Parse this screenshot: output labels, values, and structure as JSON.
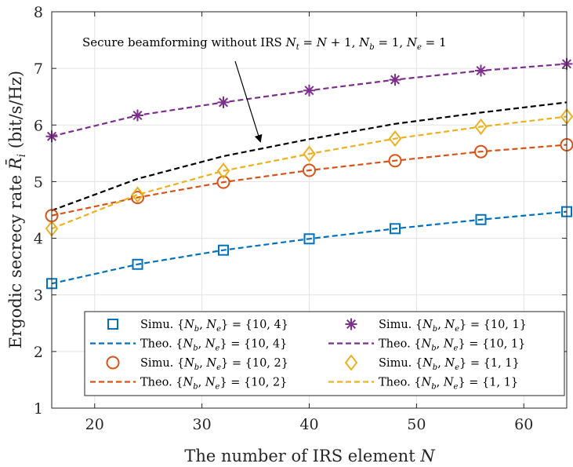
{
  "chart_data": {
    "type": "line",
    "title": "",
    "xlabel": "The number of IRS element N",
    "ylabel": "Ergodic secrecy rate R̄ᵢ (bit/s/Hz)",
    "xlim": [
      16,
      64
    ],
    "ylim": [
      1,
      8
    ],
    "xticks": [
      20,
      30,
      40,
      50,
      60
    ],
    "yticks": [
      1,
      2,
      3,
      4,
      5,
      6,
      7,
      8
    ],
    "grid": true,
    "legend_position": "bottom",
    "annotation": {
      "text": "Secure beamforming without IRS N_t = N + 1, N_b = 1, N_e = 1",
      "arrow_tip": [
        35,
        5.58
      ]
    },
    "series": [
      {
        "name": "Simu. {N_b, N_e} = {10, 4}",
        "kind": "markers",
        "marker": "square",
        "color": "#0072BD",
        "x": [
          16,
          24,
          32,
          40,
          48,
          56,
          64
        ],
        "y": [
          3.2,
          3.54,
          3.79,
          3.99,
          4.17,
          4.33,
          4.47
        ]
      },
      {
        "name": "Theo. {N_b, N_e} = {10, 4}",
        "kind": "line",
        "color": "#0072BD",
        "x": [
          16,
          24,
          32,
          40,
          48,
          56,
          64
        ],
        "y": [
          3.2,
          3.54,
          3.79,
          3.99,
          4.17,
          4.33,
          4.47
        ]
      },
      {
        "name": "Simu. {N_b, N_e} = {10, 2}",
        "kind": "markers",
        "marker": "circle",
        "color": "#D95319",
        "x": [
          16,
          24,
          32,
          40,
          48,
          56,
          64
        ],
        "y": [
          4.4,
          4.72,
          4.99,
          5.2,
          5.37,
          5.53,
          5.65
        ]
      },
      {
        "name": "Theo. {N_b, N_e} = {10, 2}",
        "kind": "line",
        "color": "#D95319",
        "x": [
          16,
          24,
          32,
          40,
          48,
          56,
          64
        ],
        "y": [
          4.4,
          4.72,
          4.99,
          5.2,
          5.37,
          5.53,
          5.65
        ]
      },
      {
        "name": "Simu. {N_b, N_e} = {10, 1}",
        "kind": "markers",
        "marker": "asterisk",
        "color": "#7E2F8E",
        "x": [
          16,
          24,
          32,
          40,
          48,
          56,
          64
        ],
        "y": [
          5.8,
          6.17,
          6.4,
          6.61,
          6.8,
          6.96,
          7.08
        ]
      },
      {
        "name": "Theo. {N_b, N_e} = {10, 1}",
        "kind": "line",
        "color": "#7E2F8E",
        "x": [
          16,
          24,
          32,
          40,
          48,
          56,
          64
        ],
        "y": [
          5.8,
          6.17,
          6.4,
          6.61,
          6.8,
          6.96,
          7.08
        ]
      },
      {
        "name": "Simu. {N_b, N_e} = {1, 1}",
        "kind": "markers",
        "marker": "diamond",
        "color": "#EDB120",
        "x": [
          16,
          24,
          32,
          40,
          48,
          56,
          64
        ],
        "y": [
          4.17,
          4.77,
          5.19,
          5.49,
          5.76,
          5.97,
          6.15
        ]
      },
      {
        "name": "Theo. {N_b, N_e} = {1, 1}",
        "kind": "line",
        "color": "#EDB120",
        "x": [
          16,
          24,
          32,
          40,
          48,
          56,
          64
        ],
        "y": [
          4.17,
          4.77,
          5.19,
          5.49,
          5.76,
          5.97,
          6.15
        ]
      },
      {
        "name": "Secure beamforming without IRS",
        "kind": "line",
        "color": "#000000",
        "in_legend": false,
        "x": [
          16,
          24,
          32,
          40,
          48,
          56,
          64
        ],
        "y": [
          4.49,
          5.05,
          5.45,
          5.75,
          6.02,
          6.22,
          6.4
        ]
      }
    ],
    "legend": [
      {
        "series": 0,
        "prefix": "Simu.",
        "nb": "10",
        "ne": "4"
      },
      {
        "series": 4,
        "prefix": "Simu.",
        "nb": "10",
        "ne": "1"
      },
      {
        "series": 1,
        "prefix": "Theo.",
        "nb": "10",
        "ne": "4"
      },
      {
        "series": 5,
        "prefix": "Theo.",
        "nb": "10",
        "ne": "1"
      },
      {
        "series": 2,
        "prefix": "Simu.",
        "nb": "10",
        "ne": "2"
      },
      {
        "series": 6,
        "prefix": "Simu.",
        "nb": "1",
        "ne": "1"
      },
      {
        "series": 3,
        "prefix": "Theo.",
        "nb": "10",
        "ne": "2"
      },
      {
        "series": 7,
        "prefix": "Theo.",
        "nb": "1",
        "ne": "1"
      }
    ]
  }
}
